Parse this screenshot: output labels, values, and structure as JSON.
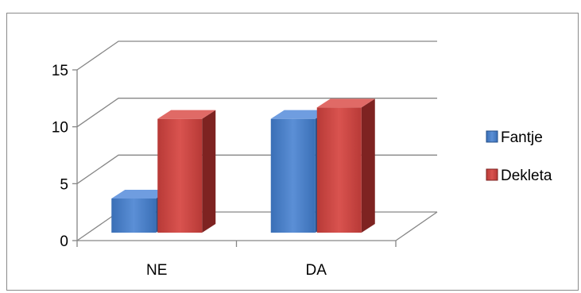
{
  "chart_data": {
    "type": "bar",
    "categories": [
      "NE",
      "DA"
    ],
    "series": [
      {
        "name": "Fantje",
        "values": [
          3,
          10
        ],
        "color": "#4f81bd"
      },
      {
        "name": "Dekleta",
        "values": [
          10,
          11
        ],
        "color": "#c0504d"
      }
    ],
    "ylim": [
      0,
      15
    ],
    "yticks": [
      0,
      5,
      10,
      15
    ],
    "grid": true,
    "legend_position": "right",
    "style": "3d-clustered-column"
  }
}
